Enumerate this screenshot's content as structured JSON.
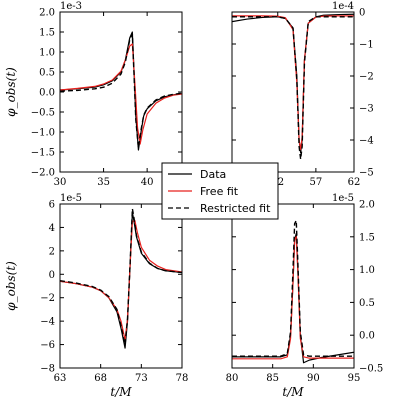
{
  "legend": {
    "entries": [
      {
        "label": "Data",
        "color": "#000000",
        "dash": "none"
      },
      {
        "label": "Free fit",
        "color": "#e8211e",
        "dash": "none"
      },
      {
        "label": "Restricted fit",
        "color": "#000000",
        "dash": "5,3"
      }
    ]
  },
  "chart_data": [
    {
      "type": "line",
      "panel": "top-left",
      "ylabel": "φ_obs(t)",
      "xlabel": "",
      "scale_label": "1e-3",
      "yaxis_side": "left",
      "xlim": [
        30,
        44
      ],
      "ylim": [
        -2.0,
        2.0
      ],
      "xticks": [
        30,
        35,
        40
      ],
      "xtick_labels": [
        "30",
        "35",
        "40"
      ],
      "yticks": [
        -2.0,
        -1.5,
        -1.0,
        -0.5,
        0.0,
        0.5,
        1.0,
        1.5,
        2.0
      ],
      "ytick_labels": [
        "−2.0",
        "−1.5",
        "−1.0",
        "−0.5",
        "0.0",
        "0.5",
        "1.0",
        "1.5",
        "2.0"
      ],
      "series": [
        {
          "name": "Data",
          "x": [
            30,
            32,
            34,
            35,
            36,
            37,
            37.5,
            38,
            38.3,
            38.5,
            38.7,
            39.0,
            39.3,
            39.6,
            40,
            41,
            42,
            43,
            44
          ],
          "y": [
            0.05,
            0.08,
            0.12,
            0.18,
            0.28,
            0.5,
            0.8,
            1.35,
            1.5,
            0.5,
            -0.6,
            -1.45,
            -1.0,
            -0.6,
            -0.42,
            -0.22,
            -0.12,
            -0.07,
            -0.04
          ]
        },
        {
          "name": "Free fit",
          "x": [
            30,
            32,
            34,
            35,
            36,
            37,
            37.5,
            38,
            38.3,
            38.6,
            38.9,
            39.2,
            39.5,
            40,
            41,
            42,
            43,
            44
          ],
          "y": [
            0.05,
            0.09,
            0.14,
            0.2,
            0.3,
            0.52,
            0.8,
            1.15,
            1.2,
            0.2,
            -0.9,
            -1.3,
            -0.95,
            -0.55,
            -0.28,
            -0.15,
            -0.08,
            -0.05
          ]
        },
        {
          "name": "Restricted fit",
          "x": [
            30,
            32,
            34,
            35,
            36,
            37,
            37.5,
            38,
            38.3,
            38.5,
            38.7,
            39.0,
            39.3,
            39.6,
            40,
            41,
            42,
            43,
            44
          ],
          "y": [
            0.02,
            0.04,
            0.08,
            0.12,
            0.22,
            0.45,
            0.75,
            1.3,
            1.45,
            0.4,
            -0.7,
            -1.4,
            -0.95,
            -0.58,
            -0.4,
            -0.2,
            -0.1,
            -0.06,
            -0.03
          ]
        }
      ]
    },
    {
      "type": "line",
      "panel": "top-right",
      "ylabel": "",
      "xlabel": "",
      "scale_label": "1e-4",
      "yaxis_side": "right",
      "xlim": [
        46,
        62
      ],
      "ylim": [
        -5,
        0
      ],
      "xticks": [
        52,
        57,
        62
      ],
      "xtick_labels": [
        "52",
        "57",
        "62"
      ],
      "yticks": [
        -5,
        -4,
        -3,
        -2,
        -1,
        0
      ],
      "ytick_labels": [
        "−5",
        "−4",
        "−3",
        "−2",
        "−1",
        "0"
      ],
      "series": [
        {
          "name": "Data",
          "x": [
            46,
            48,
            50,
            52,
            53,
            54,
            54.5,
            54.8,
            55.0,
            55.2,
            55.5,
            56,
            57,
            58,
            60,
            62
          ],
          "y": [
            -0.3,
            -0.22,
            -0.17,
            -0.15,
            -0.2,
            -0.5,
            -2.0,
            -4.0,
            -4.4,
            -4.0,
            -1.5,
            -0.35,
            -0.15,
            -0.1,
            -0.08,
            -0.07
          ]
        },
        {
          "name": "Free fit",
          "x": [
            46,
            48,
            50,
            52,
            53,
            54,
            54.5,
            54.8,
            55.0,
            55.2,
            55.5,
            56,
            57,
            58,
            60,
            62
          ],
          "y": [
            -0.12,
            -0.12,
            -0.12,
            -0.13,
            -0.18,
            -0.55,
            -2.2,
            -4.0,
            -4.3,
            -3.9,
            -1.5,
            -0.35,
            -0.16,
            -0.13,
            -0.12,
            -0.12
          ]
        },
        {
          "name": "Restricted fit",
          "x": [
            46,
            48,
            50,
            52,
            53,
            54,
            54.5,
            54.8,
            55.0,
            55.2,
            55.5,
            56,
            57,
            58,
            60,
            62
          ],
          "y": [
            -0.15,
            -0.15,
            -0.15,
            -0.15,
            -0.2,
            -0.5,
            -2.1,
            -4.2,
            -4.6,
            -4.2,
            -1.6,
            -0.3,
            -0.15,
            -0.15,
            -0.15,
            -0.15
          ]
        }
      ]
    },
    {
      "type": "line",
      "panel": "bottom-left",
      "ylabel": "φ_obs(t)",
      "xlabel": "t/M",
      "scale_label": "1e-5",
      "yaxis_side": "left",
      "xlim": [
        63,
        78
      ],
      "ylim": [
        -8,
        6
      ],
      "xticks": [
        63,
        68,
        73,
        78
      ],
      "xtick_labels": [
        "63",
        "68",
        "73",
        "78"
      ],
      "yticks": [
        -8,
        -6,
        -4,
        -2,
        0,
        2,
        4,
        6
      ],
      "ytick_labels": [
        "−8",
        "−6",
        "−4",
        "−2",
        "0",
        "2",
        "4",
        "6"
      ],
      "series": [
        {
          "name": "Data",
          "x": [
            63,
            65,
            67,
            68,
            69,
            70,
            70.5,
            71,
            71.3,
            71.6,
            71.9,
            72.1,
            72.4,
            73,
            74,
            75,
            76,
            78
          ],
          "y": [
            -0.6,
            -0.8,
            -1.1,
            -1.4,
            -2.0,
            -3.2,
            -4.6,
            -6.3,
            -4.0,
            0.5,
            5.3,
            4.5,
            3.2,
            1.8,
            0.9,
            0.5,
            0.3,
            0.15
          ]
        },
        {
          "name": "Free fit",
          "x": [
            63,
            65,
            67,
            68,
            69,
            70,
            70.5,
            71,
            71.3,
            71.6,
            71.9,
            72.2,
            72.5,
            73,
            74,
            75,
            76,
            78
          ],
          "y": [
            -0.6,
            -0.8,
            -1.1,
            -1.4,
            -2.0,
            -3.0,
            -4.0,
            -5.6,
            -3.8,
            0.5,
            4.5,
            4.6,
            3.6,
            2.3,
            1.2,
            0.7,
            0.4,
            0.2
          ]
        },
        {
          "name": "Restricted fit",
          "x": [
            63,
            65,
            67,
            68,
            69,
            70,
            70.5,
            71,
            71.3,
            71.6,
            71.9,
            72.1,
            72.4,
            73,
            74,
            75,
            76,
            78
          ],
          "y": [
            -0.55,
            -0.75,
            -1.05,
            -1.35,
            -1.9,
            -3.0,
            -4.4,
            -6.0,
            -3.8,
            0.6,
            5.6,
            4.8,
            3.3,
            1.9,
            0.95,
            0.5,
            0.3,
            0.15
          ]
        }
      ]
    },
    {
      "type": "line",
      "panel": "bottom-right",
      "ylabel": "",
      "xlabel": "t/M",
      "scale_label": "1e-5",
      "yaxis_side": "right",
      "xlim": [
        80,
        95
      ],
      "ylim": [
        -0.5,
        2.0
      ],
      "xticks": [
        80,
        85,
        90,
        95
      ],
      "xtick_labels": [
        "80",
        "85",
        "90",
        "95"
      ],
      "yticks": [
        -0.5,
        0.0,
        0.5,
        1.0,
        1.5,
        2.0
      ],
      "ytick_labels": [
        "−0.5",
        "0.0",
        "0.5",
        "1.0",
        "1.5",
        "2.0"
      ],
      "series": [
        {
          "name": "Data",
          "x": [
            80,
            82,
            84,
            86,
            86.8,
            87.2,
            87.5,
            87.7,
            87.9,
            88.1,
            88.4,
            88.8,
            89.5,
            91,
            93,
            95
          ],
          "y": [
            -0.33,
            -0.33,
            -0.33,
            -0.33,
            -0.3,
            0.0,
            0.8,
            1.45,
            1.55,
            1.0,
            0.0,
            -0.42,
            -0.38,
            -0.34,
            -0.3,
            -0.26
          ]
        },
        {
          "name": "Free fit",
          "x": [
            80,
            82,
            84,
            86,
            86.8,
            87.2,
            87.5,
            87.7,
            87.9,
            88.1,
            88.4,
            88.8,
            89.5,
            91,
            93,
            95
          ],
          "y": [
            -0.36,
            -0.36,
            -0.36,
            -0.36,
            -0.33,
            -0.05,
            0.8,
            1.45,
            1.5,
            0.95,
            -0.05,
            -0.33,
            -0.35,
            -0.35,
            -0.35,
            -0.35
          ]
        },
        {
          "name": "Restricted fit",
          "x": [
            80,
            82,
            84,
            86,
            86.8,
            87.2,
            87.5,
            87.7,
            87.9,
            88.1,
            88.4,
            88.8,
            89.5,
            91,
            93,
            95
          ],
          "y": [
            -0.32,
            -0.32,
            -0.32,
            -0.32,
            -0.28,
            0.05,
            1.0,
            1.7,
            1.75,
            1.1,
            0.05,
            -0.3,
            -0.32,
            -0.32,
            -0.32,
            -0.32
          ]
        }
      ]
    }
  ]
}
